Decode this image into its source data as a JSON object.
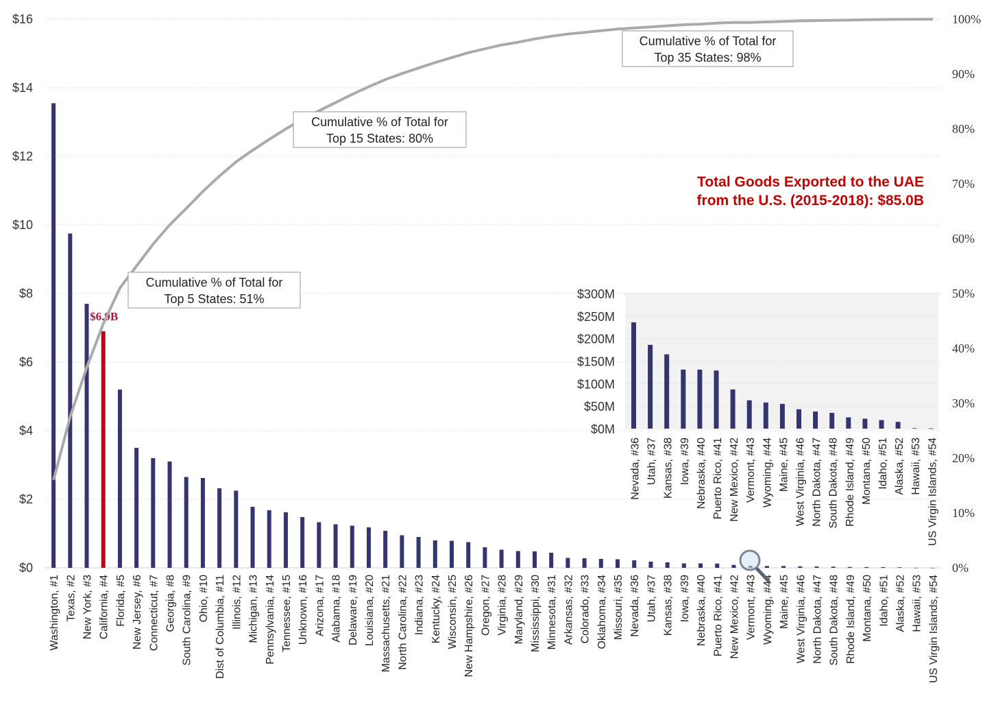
{
  "chart_data": [
    {
      "type": "bar",
      "subtype": "pareto",
      "title": "Total Goods Exported to the UAE from the U.S. (2015-2018): $85.0B",
      "title_lines": [
        "Total Goods Exported to the UAE",
        "from the U.S. (2015-2018):  $85.0B"
      ],
      "categories": [
        "Washington, #1",
        "Texas, #2",
        "New York, #3",
        "California, #4",
        "Florida, #5",
        "New Jersey, #6",
        "Connecticut, #7",
        "Georgia, #8",
        "South Carolina, #9",
        "Ohio, #10",
        "Dist of Columbia, #11",
        "Illinois, #12",
        "Michigan, #13",
        "Pennsylvania, #14",
        "Tennessee, #15",
        "Unknown, #16",
        "Arizona, #17",
        "Alabama, #18",
        "Delaware, #19",
        "Louisiana, #20",
        "Massachusetts, #21",
        "North Carolina, #22",
        "Indiana, #23",
        "Kentucky, #24",
        "Wisconsin, #25",
        "New Hampshire, #26",
        "Oregon, #27",
        "Virginia, #28",
        "Maryland, #29",
        "Mississippi, #30",
        "Minnesota, #31",
        "Arkansas, #32",
        "Colorado, #33",
        "Oklahoma, #34",
        "Missouri, #35",
        "Nevada, #36",
        "Utah, #37",
        "Kansas, #38",
        "Iowa, #39",
        "Nebraska, #40",
        "Puerto Rico, #41",
        "New Mexico, #42",
        "Vermont, #43",
        "Wyoming, #44",
        "Maine, #45",
        "West Virginia, #46",
        "North Dakota, #47",
        "South Dakota, #48",
        "Rhode Island, #49",
        "Montana, #50",
        "Idaho, #51",
        "Alaska, #52",
        "Hawaii, #53",
        "US Virgin Islands, #54"
      ],
      "series": [
        {
          "values": [
            13.55,
            9.75,
            7.7,
            6.9,
            5.2,
            3.5,
            3.2,
            3.1,
            2.65,
            2.62,
            2.32,
            2.25,
            1.78,
            1.68,
            1.62,
            1.48,
            1.33,
            1.27,
            1.23,
            1.18,
            1.08,
            0.95,
            0.9,
            0.8,
            0.79,
            0.75,
            0.6,
            0.53,
            0.49,
            0.48,
            0.44,
            0.29,
            0.28,
            0.26,
            0.25,
            0.22,
            0.18,
            0.16,
            0.13,
            0.13,
            0.125,
            0.085,
            0.06,
            0.055,
            0.054,
            0.043,
            0.038,
            0.035,
            0.025,
            0.023,
            0.021,
            0.016,
            0.002,
            0.001
          ],
          "unit": "$B",
          "color": "#34346e",
          "highlight_index": 3,
          "highlight_color": "#b00b1e",
          "highlight_label": "$6.9B"
        },
        {
          "type": "line",
          "axis": "right",
          "color": "#aaaaaa",
          "values": [
            16,
            27.5,
            36.5,
            44.5,
            51,
            55,
            59,
            62.5,
            65.5,
            68.6,
            71.4,
            74,
            76.1,
            78.1,
            80,
            81.8,
            83.3,
            84.8,
            86.3,
            87.7,
            89,
            90.1,
            91.1,
            92.1,
            93,
            93.9,
            94.6,
            95.3,
            95.8,
            96.4,
            96.9,
            97.3,
            97.6,
            97.9,
            98.2,
            98.4,
            98.6,
            98.8,
            99,
            99.1,
            99.3,
            99.4,
            99.4,
            99.5,
            99.6,
            99.7,
            99.75,
            99.8,
            99.85,
            99.9,
            99.95,
            99.97,
            99.99,
            100
          ]
        }
      ],
      "ylim": [
        0,
        16
      ],
      "y_ticks": [
        "$0",
        "$2",
        "$4",
        "$6",
        "$8",
        "$10",
        "$12",
        "$14",
        "$16"
      ],
      "y2lim": [
        0,
        100
      ],
      "y2_ticks": [
        "0%",
        "10%",
        "20%",
        "30%",
        "40%",
        "50%",
        "60%",
        "70%",
        "80%",
        "90%",
        "100%"
      ],
      "grid": true,
      "annotations": [
        {
          "index": 4,
          "lines": [
            "Cumulative  % of Total for",
            "Top 5 States: 51%"
          ]
        },
        {
          "index": 14,
          "lines": [
            "Cumulative  % of Total for",
            "Top 15 States: 80%"
          ]
        },
        {
          "index": 34,
          "lines": [
            "Cumulative  % of Total for",
            "Top 35 States: 98%"
          ]
        }
      ]
    },
    {
      "type": "bar",
      "role": "inset",
      "categories": [
        "Nevada, #36",
        "Utah, #37",
        "Kansas, #38",
        "Iowa, #39",
        "Nebraska, #40",
        "Puerto Rico, #41",
        "New Mexico, #42",
        "Vermont, #43",
        "Wyoming, #44",
        "Maine, #45",
        "West Virginia, #46",
        "North Dakota, #47",
        "South Dakota, #48",
        "Rhode Island, #49",
        "Montana, #50",
        "Idaho, #51",
        "Alaska, #52",
        "Hawaii, #53",
        "US Virgin Islands, #54"
      ],
      "values": [
        236,
        186,
        165,
        131,
        131,
        129,
        87,
        63,
        58,
        55,
        43,
        38,
        35,
        25,
        22,
        19,
        15,
        1,
        0.5
      ],
      "unit": "$M",
      "color": "#34346e",
      "ylim": [
        0,
        300
      ],
      "y_ticks": [
        "$0M",
        "$50M",
        "$100M",
        "$150M",
        "$200M",
        "$250M",
        "$300M"
      ]
    }
  ]
}
